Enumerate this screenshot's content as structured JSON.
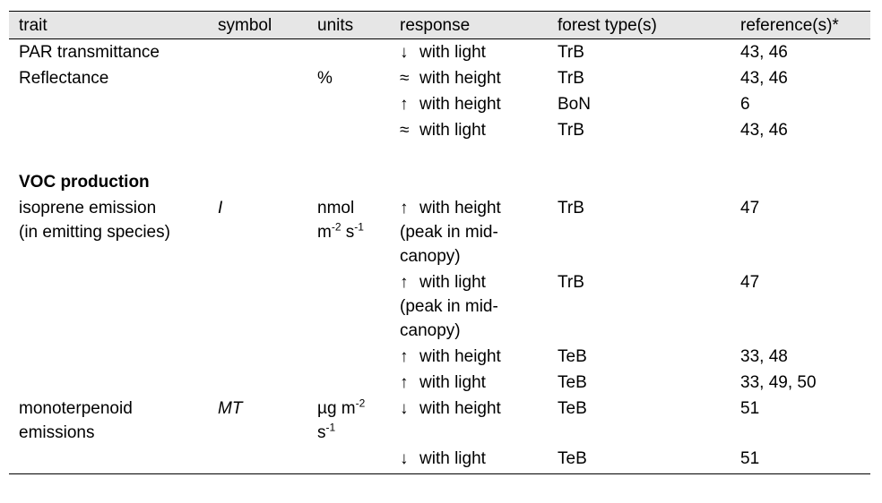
{
  "table": {
    "headers": [
      "trait",
      "symbol",
      "units",
      "response",
      "forest type(s)",
      "reference(s)*"
    ],
    "rows": [
      {
        "trait": "PAR transmittance",
        "symbol": "",
        "units": "",
        "arrow": "↓",
        "response": "with light",
        "forest": "TrB",
        "ref": "43, 46"
      },
      {
        "trait": "Reflectance",
        "symbol": "",
        "units": "%",
        "arrow": "≈",
        "response": "with height",
        "forest": "TrB",
        "ref": "43, 46"
      },
      {
        "trait": "",
        "symbol": "",
        "units": "",
        "arrow": "↑",
        "response": "with height",
        "forest": "BoN",
        "ref": "6"
      },
      {
        "trait": "",
        "symbol": "",
        "units": "",
        "arrow": "≈",
        "response": "with light",
        "forest": "TrB",
        "ref": "43, 46"
      }
    ],
    "section_heading": "VOC production",
    "voc_rows": [
      {
        "trait": "isoprene emission\n(in emitting species)",
        "symbol": "I",
        "units_a": "nmol\nm",
        "units_sup1": "-2",
        "units_b": " s",
        "units_sup2": "-1",
        "arrow": "↑",
        "response": "with height\n(peak in mid-\ncanopy)",
        "forest": "TrB",
        "ref": "47"
      },
      {
        "trait": "",
        "symbol": "",
        "arrow": "↑",
        "response": "with light\n(peak in mid-\ncanopy)",
        "forest": "TrB",
        "ref": "47"
      },
      {
        "trait": "",
        "symbol": "",
        "arrow": "↑",
        "response": "with height",
        "forest": "TeB",
        "ref": "33, 48"
      },
      {
        "trait": "",
        "symbol": "",
        "arrow": "↑",
        "response": "with light",
        "forest": "TeB",
        "ref": "33, 49, 50"
      },
      {
        "trait": "monoterpenoid\nemissions",
        "symbol": "MT",
        "units_a": "µg m",
        "units_sup1": "-2",
        "units_b": "\ns",
        "units_sup2": "-1",
        "arrow": "↓",
        "response": "with height",
        "forest": "TeB",
        "ref": "51"
      },
      {
        "trait": "",
        "symbol": "",
        "arrow": "↓",
        "response": "with light",
        "forest": "TeB",
        "ref": "51"
      }
    ]
  }
}
